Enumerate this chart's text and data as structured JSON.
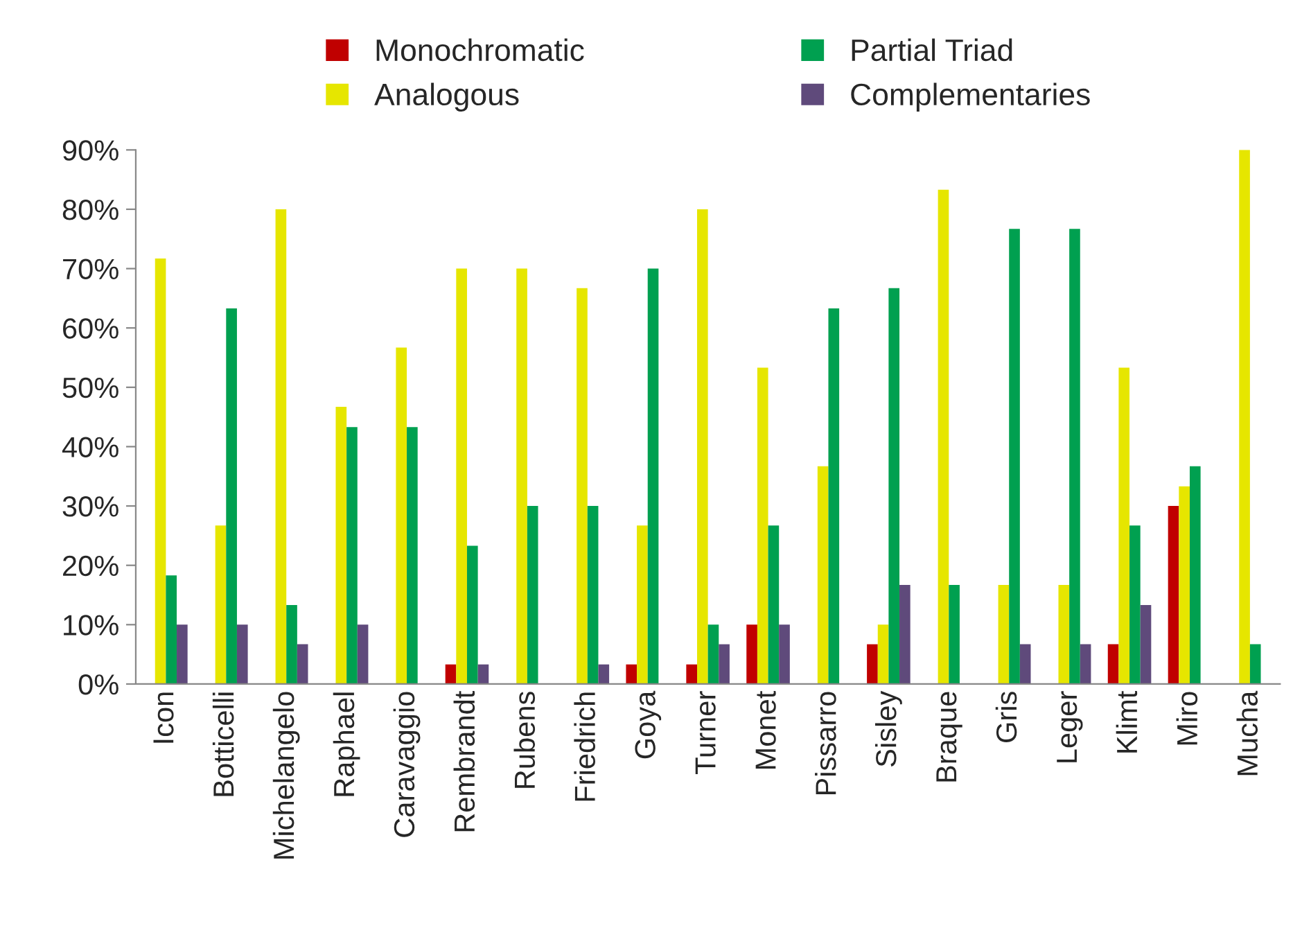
{
  "chart_data": {
    "type": "bar",
    "categories": [
      "Icon",
      "Botticelli",
      "Michelangelo",
      "Raphael",
      "Caravaggio",
      "Rembrandt",
      "Rubens",
      "Friedrich",
      "Goya",
      "Turner",
      "Monet",
      "Pissarro",
      "Sisley",
      "Braque",
      "Gris",
      "Leger",
      "Klimt",
      "Miro",
      "Mucha"
    ],
    "series": [
      {
        "name": "Monochromatic",
        "color": "#c00000",
        "values": [
          0,
          0,
          0,
          0,
          0,
          3.3,
          0,
          0,
          3.3,
          3.3,
          10,
          0,
          6.7,
          0,
          0,
          0,
          6.7,
          30,
          0
        ]
      },
      {
        "name": "Analogous",
        "color": "#e6e600",
        "values": [
          71.7,
          26.7,
          80,
          46.7,
          56.7,
          70,
          70,
          66.7,
          26.7,
          80,
          53.3,
          36.7,
          10,
          83.3,
          16.7,
          16.7,
          53.3,
          33.3,
          90
        ]
      },
      {
        "name": "Partial Triad",
        "color": "#00a050",
        "values": [
          18.3,
          63.3,
          13.3,
          43.3,
          43.3,
          23.3,
          30,
          30,
          70,
          10,
          26.7,
          63.3,
          66.7,
          16.7,
          76.7,
          76.7,
          26.7,
          36.7,
          6.7
        ]
      },
      {
        "name": "Complementaries",
        "color": "#5f4a7b",
        "values": [
          10,
          10,
          6.7,
          10,
          0,
          3.3,
          0,
          3.3,
          0,
          6.7,
          10,
          0,
          16.7,
          0,
          6.7,
          6.7,
          13.3,
          0,
          0
        ]
      }
    ],
    "ylim": [
      0,
      90
    ],
    "yticks": [
      {
        "value": 0,
        "label": "0%"
      },
      {
        "value": 10,
        "label": "10%"
      },
      {
        "value": 20,
        "label": "20%"
      },
      {
        "value": 30,
        "label": "30%"
      },
      {
        "value": 40,
        "label": "40%"
      },
      {
        "value": 50,
        "label": "50%"
      },
      {
        "value": 60,
        "label": "60%"
      },
      {
        "value": 70,
        "label": "70%"
      },
      {
        "value": 80,
        "label": "80%"
      },
      {
        "value": 90,
        "label": "90%"
      }
    ],
    "grid": false,
    "legend": "top"
  }
}
